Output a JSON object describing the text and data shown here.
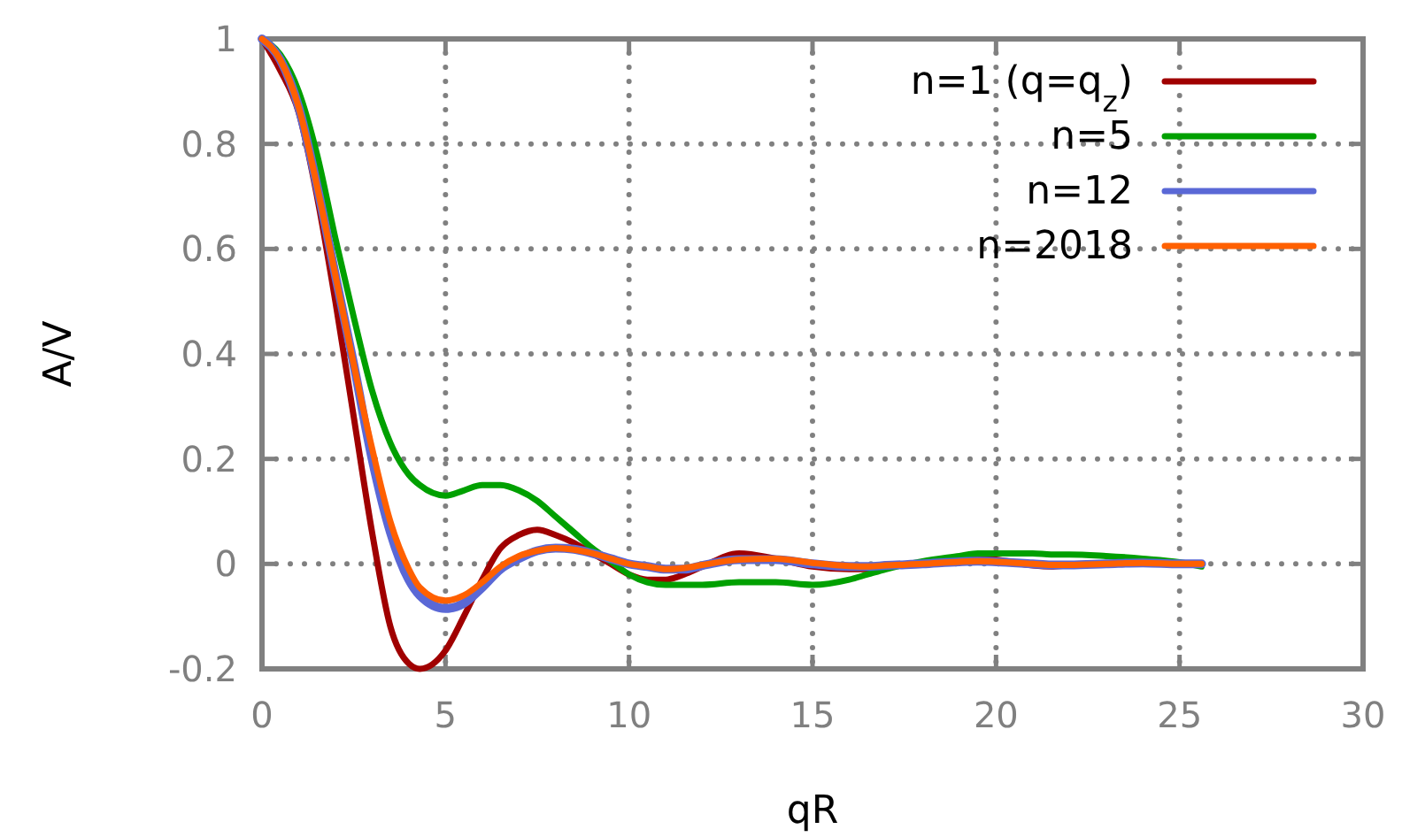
{
  "chart_data": {
    "type": "line",
    "xlabel": "qR",
    "ylabel": "A/V",
    "xlim": [
      0,
      30
    ],
    "ylim": [
      -0.2,
      1
    ],
    "xticks": [
      0,
      5,
      10,
      15,
      20,
      25,
      30
    ],
    "yticks": [
      {
        "value": -0.2,
        "label": "-0.2"
      },
      0,
      {
        "value": 0.2,
        "label": "0.2"
      },
      {
        "value": 0.4,
        "label": "0.4"
      },
      {
        "value": 0.6,
        "label": "0.6"
      },
      {
        "value": 0.8,
        "label": "0.8"
      },
      1
    ],
    "grid": true,
    "legend": "top right",
    "line_style": "solid",
    "marker": "none",
    "x": [
      0,
      0.5,
      1,
      1.5,
      2,
      2.5,
      3,
      3.5,
      4,
      4.3,
      5,
      5.5,
      6,
      6.5,
      7,
      7.5,
      8,
      8.5,
      9,
      9.5,
      10,
      10.5,
      11,
      11.5,
      12,
      13,
      14,
      15,
      16,
      16.5,
      17,
      18,
      19,
      19.5,
      20,
      21,
      21.5,
      22,
      23,
      24,
      25,
      25.6
    ],
    "series": [
      {
        "name": "n=1 (q=q$_{z}$)",
        "color": "#a00000",
        "values": [
          1,
          0.94,
          0.86,
          0.7,
          0.5,
          0.28,
          0.06,
          -0.12,
          -0.19,
          -0.2,
          -0.165,
          -0.1,
          -0.03,
          0.03,
          0.055,
          0.065,
          0.055,
          0.04,
          0.02,
          0.0,
          -0.02,
          -0.03,
          -0.03,
          -0.02,
          -0.005,
          0.02,
          0.01,
          -0.005,
          -0.01,
          -0.01,
          -0.005,
          0.0,
          0.008,
          0.01,
          0.008,
          -0.003,
          -0.005,
          -0.003,
          0.0,
          0.0,
          0.0,
          0.0
        ]
      },
      {
        "name": "n=5",
        "color": "#00a000",
        "values": [
          1,
          0.97,
          0.9,
          0.78,
          0.62,
          0.47,
          0.33,
          0.23,
          0.17,
          0.15,
          0.13,
          0.14,
          0.15,
          0.15,
          0.14,
          0.12,
          0.09,
          0.06,
          0.03,
          0.005,
          -0.02,
          -0.035,
          -0.04,
          -0.04,
          -0.04,
          -0.035,
          -0.035,
          -0.04,
          -0.03,
          -0.02,
          -0.01,
          0.005,
          0.015,
          0.02,
          0.02,
          0.02,
          0.018,
          0.018,
          0.015,
          0.01,
          0.003,
          -0.005
        ]
      },
      {
        "name": "n=12",
        "color": "#5a68d6",
        "values": [
          1,
          0.96,
          0.87,
          0.72,
          0.55,
          0.38,
          0.2,
          0.06,
          -0.03,
          -0.06,
          -0.085,
          -0.075,
          -0.045,
          -0.01,
          0.01,
          0.025,
          0.03,
          0.028,
          0.02,
          0.01,
          0.0,
          -0.005,
          -0.01,
          -0.01,
          -0.003,
          0.008,
          0.008,
          0.0,
          -0.005,
          -0.005,
          -0.003,
          0.0,
          0.004,
          0.005,
          0.004,
          0.0,
          -0.002,
          -0.002,
          0.0,
          0.002,
          0.0,
          0.0
        ]
      },
      {
        "name": "n=2018",
        "color": "#ff6000",
        "values": [
          1,
          0.96,
          0.87,
          0.72,
          0.55,
          0.38,
          0.22,
          0.08,
          -0.01,
          -0.045,
          -0.07,
          -0.06,
          -0.035,
          -0.005,
          0.015,
          0.025,
          0.03,
          0.027,
          0.02,
          0.01,
          0.0,
          -0.005,
          -0.01,
          -0.008,
          -0.002,
          0.008,
          0.01,
          0.002,
          -0.004,
          -0.005,
          -0.003,
          0.0,
          0.004,
          0.005,
          0.004,
          0.0,
          -0.002,
          -0.002,
          0.0,
          0.002,
          0.0,
          0.0
        ]
      }
    ]
  }
}
